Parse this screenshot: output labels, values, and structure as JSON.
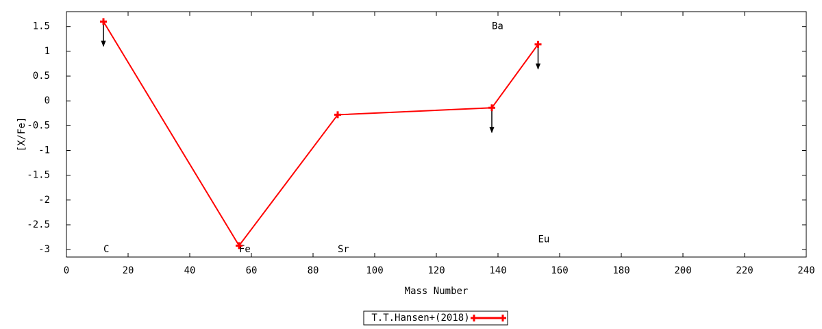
{
  "chart_data": {
    "type": "line",
    "xlabel": "Mass Number",
    "ylabel": "[X/Fe]",
    "xlim": [
      0,
      240
    ],
    "xticks": [
      0,
      20,
      40,
      60,
      80,
      100,
      120,
      140,
      160,
      180,
      200,
      220,
      240
    ],
    "ylim": [
      -3.15,
      1.8
    ],
    "yticks": [
      1.5,
      1,
      0.5,
      0,
      -0.5,
      -1,
      -1.5,
      -2,
      -2.5,
      -3
    ],
    "grid": false,
    "legend": "bottom",
    "series": [
      {
        "name": "T.T.Hansen+(2018)",
        "color": "#ff0000",
        "x": [
          12,
          56,
          88,
          138,
          153
        ],
        "values": [
          1.6,
          -2.92,
          -0.28,
          -0.14,
          1.14
        ],
        "upper_limit": [
          true,
          false,
          false,
          true,
          true
        ]
      }
    ],
    "annotations": [
      {
        "text": "C",
        "x": 12,
        "y": -3
      },
      {
        "text": "Fe",
        "x": 56,
        "y": -3
      },
      {
        "text": "Sr",
        "x": 88,
        "y": -3
      },
      {
        "text": "Ba",
        "x": 138,
        "y": 1.5
      },
      {
        "text": "Eu",
        "x": 153,
        "y": -2.8
      }
    ]
  }
}
